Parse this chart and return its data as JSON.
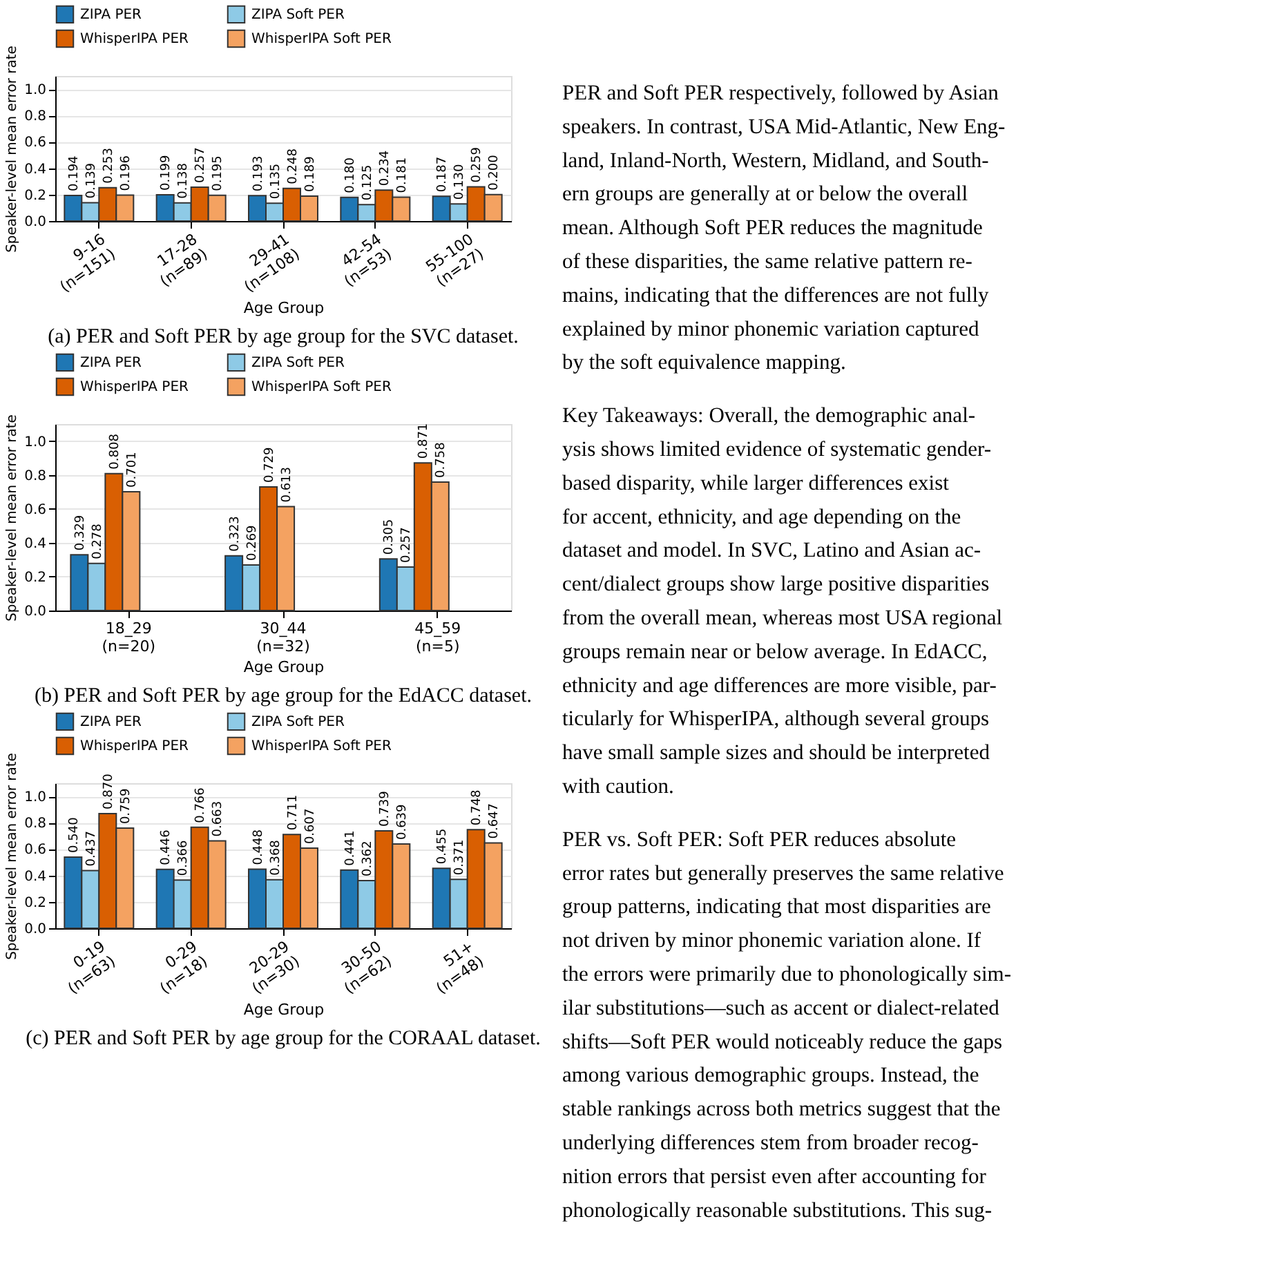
{
  "chart_data": [
    {
      "type": "bar",
      "categories": [
        "9-16\n(n=151)",
        "17-28\n(n=89)",
        "29-41\n(n=108)",
        "42-54\n(n=53)",
        "55-100\n(n=27)"
      ],
      "xlabel": "Age Group",
      "ylabel": "Speaker-level mean error rate",
      "ylim": [
        0,
        1.1
      ],
      "yticks": [
        {
          "value": 0,
          "label": "0.0"
        },
        {
          "value": 0.2,
          "label": "0.2"
        },
        {
          "value": 0.4,
          "label": "0.4"
        },
        {
          "value": 0.6,
          "label": "0.6"
        },
        {
          "value": 0.8,
          "label": "0.8"
        },
        {
          "value": 1.0,
          "label": "1.0"
        }
      ],
      "grid": "y",
      "legend": "top",
      "data_labels": true,
      "series": [
        {
          "name": "ZIPA PER",
          "color": "#1f77b4",
          "values": [
            0.194,
            0.199,
            0.193,
            0.18,
            0.187
          ],
          "value_labels": [
            "0.194",
            "0.199",
            "0.193",
            "0.180",
            "0.187"
          ]
        },
        {
          "name": "ZIPA Soft PER",
          "color": "#8ecae6",
          "values": [
            0.139,
            0.138,
            0.135,
            0.125,
            0.13
          ],
          "value_labels": [
            "0.139",
            "0.138",
            "0.135",
            "0.125",
            "0.130"
          ]
        },
        {
          "name": "WhisperIPA PER",
          "color": "#d95f02",
          "values": [
            0.253,
            0.257,
            0.248,
            0.234,
            0.259
          ],
          "value_labels": [
            "0.253",
            "0.257",
            "0.248",
            "0.234",
            "0.259"
          ]
        },
        {
          "name": "WhisperIPA Soft PER",
          "color": "#f4a261",
          "values": [
            0.196,
            0.195,
            0.189,
            0.181,
            0.2
          ],
          "value_labels": [
            "0.196",
            "0.195",
            "0.189",
            "0.181",
            "0.200"
          ]
        }
      ],
      "annotations": [
        "(a) PER and Soft PER by age group for the SVC dataset."
      ]
    },
    {
      "type": "bar",
      "categories": [
        "18_29\n(n=20)",
        "30_44\n(n=32)",
        "45_59\n(n=5)"
      ],
      "xlabel": "Age Group",
      "ylabel": "Speaker-level mean error rate",
      "ylim": [
        0,
        1.1
      ],
      "yticks": [
        {
          "value": 0,
          "label": "0.0"
        },
        {
          "value": 0.2,
          "label": "0.2"
        },
        {
          "value": 0.4,
          "label": "0.4"
        },
        {
          "value": 0.6,
          "label": "0.6"
        },
        {
          "value": 0.8,
          "label": "0.8"
        },
        {
          "value": 1.0,
          "label": "1.0"
        }
      ],
      "grid": "y",
      "legend": "top",
      "data_labels": true,
      "series": [
        {
          "name": "ZIPA PER",
          "color": "#1f77b4",
          "values": [
            0.329,
            0.323,
            0.305
          ],
          "value_labels": [
            "0.329",
            "0.323",
            "0.305"
          ]
        },
        {
          "name": "ZIPA Soft PER",
          "color": "#8ecae6",
          "values": [
            0.278,
            0.269,
            0.257
          ],
          "value_labels": [
            "0.278",
            "0.269",
            "0.257"
          ]
        },
        {
          "name": "WhisperIPA PER",
          "color": "#d95f02",
          "values": [
            0.808,
            0.729,
            0.871
          ],
          "value_labels": [
            "0.808",
            "0.729",
            "0.871"
          ]
        },
        {
          "name": "WhisperIPA Soft PER",
          "color": "#f4a261",
          "values": [
            0.701,
            0.613,
            0.758
          ],
          "value_labels": [
            "0.701",
            "0.613",
            "0.758"
          ]
        }
      ],
      "annotations": [
        "(b) PER and Soft PER by age group for the EdACC dataset."
      ]
    },
    {
      "type": "bar",
      "categories": [
        "0-19\n(n=63)",
        "0-29\n(n=18)",
        "20-29\n(n=30)",
        "30-50\n(n=62)",
        "51+\n(n=48)"
      ],
      "xlabel": "Age Group",
      "ylabel": "Speaker-level mean error rate",
      "ylim": [
        0,
        1.1
      ],
      "yticks": [
        {
          "value": 0,
          "label": "0.0"
        },
        {
          "value": 0.2,
          "label": "0.2"
        },
        {
          "value": 0.4,
          "label": "0.4"
        },
        {
          "value": 0.6,
          "label": "0.6"
        },
        {
          "value": 0.8,
          "label": "0.8"
        },
        {
          "value": 1.0,
          "label": "1.0"
        }
      ],
      "grid": "y",
      "legend": "top",
      "data_labels": true,
      "series": [
        {
          "name": "ZIPA PER",
          "color": "#1f77b4",
          "values": [
            0.54,
            0.446,
            0.448,
            0.441,
            0.455
          ],
          "value_labels": [
            "0.540",
            "0.446",
            "0.448",
            "0.441",
            "0.455"
          ]
        },
        {
          "name": "ZIPA Soft PER",
          "color": "#8ecae6",
          "values": [
            0.437,
            0.366,
            0.368,
            0.362,
            0.371
          ],
          "value_labels": [
            "0.437",
            "0.366",
            "0.368",
            "0.362",
            "0.371"
          ]
        },
        {
          "name": "WhisperIPA PER",
          "color": "#d95f02",
          "values": [
            0.87,
            0.766,
            0.711,
            0.739,
            0.748
          ],
          "value_labels": [
            "0.870",
            "0.766",
            "0.711",
            "0.739",
            "0.748"
          ]
        },
        {
          "name": "WhisperIPA Soft PER",
          "color": "#f4a261",
          "values": [
            0.759,
            0.663,
            0.607,
            0.639,
            0.647
          ],
          "value_labels": [
            "0.759",
            "0.663",
            "0.607",
            "0.639",
            "0.647"
          ]
        }
      ],
      "annotations": [
        "(c) PER and Soft PER by age group for the CORAAL dataset."
      ]
    },
    {
      "type": "other",
      "annotations": [
        "PER and Soft PER respectively, followed by Asian\nspeakers. In contrast, USA Mid-Atlantic, New Eng-\nland, Inland-North, Western, Midland, and South-\nern groups are generally at or below the overall\nmean. Although Soft PER reduces the magnitude\nof these disparities, the same relative pattern re-\nmains, indicating that the differences are not fully\nexplained by minor phonemic variation captured\nby the soft equivalence mapping.",
        "Key Takeaways:    Overall, the demographic anal-\nysis shows limited evidence of systematic gender-\nbased disparity, while larger differences exist\nfor accent, ethnicity, and age depending on the\ndataset and model. In SVC, Latino and Asian ac-\ncent/dialect groups show large positive disparities\nfrom the overall mean, whereas most USA regional\ngroups remain near or below average. In EdACC,\nethnicity and age differences are more visible, par-\nticularly for WhisperIPA, although several groups\nhave small sample sizes and should be interpreted\nwith caution.",
        "PER vs. Soft PER:    Soft PER reduces absolute\nerror rates but generally preserves the same relative\ngroup patterns, indicating that most disparities are\nnot driven by minor phonemic variation alone. If\nthe errors were primarily due to phonologically sim-\nilar substitutions—such as accent or dialect-related\nshifts—Soft PER would noticeably reduce the gaps\namong various demographic groups. Instead, the\nstable rankings across both metrics suggest that the\nunderlying differences stem from broader recog-\nnition errors that persist even after accounting for\nphonologically reasonable substitutions. This sug-"
      ]
    }
  ]
}
